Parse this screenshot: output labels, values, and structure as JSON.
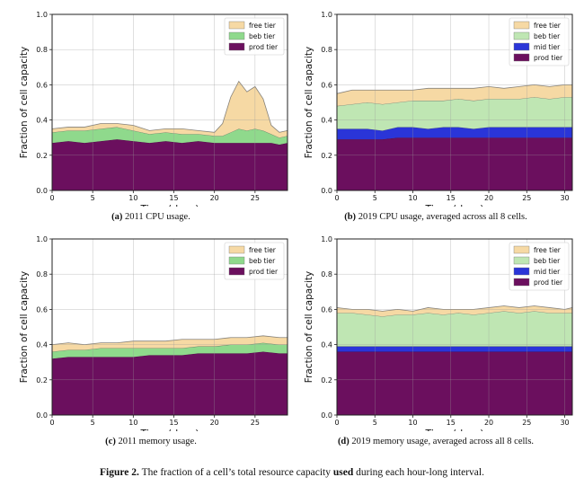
{
  "figure_caption": {
    "label": "Figure 2.",
    "text_before": " The fraction of a cell’s total resource capacity ",
    "bold_word": "used",
    "text_after": " during each hour-long interval."
  },
  "chart_data": [
    {
      "id": "a",
      "type": "area",
      "stacked": true,
      "caption_label": "(a)",
      "caption_text": "2011 CPU usage.",
      "xlabel": "Time (days)",
      "ylabel": "Fraction of cell capacity",
      "xlim": [
        0,
        29
      ],
      "ylim": [
        0,
        1.0
      ],
      "xticks": [
        0,
        5,
        10,
        15,
        20,
        25
      ],
      "yticks": [
        "0.0",
        "0.2",
        "0.4",
        "0.6",
        "0.8",
        "1.0"
      ],
      "grid": true,
      "legend_position": "top-right",
      "x": [
        0,
        2,
        4,
        6,
        8,
        10,
        12,
        14,
        16,
        18,
        20,
        21,
        22,
        23,
        24,
        25,
        26,
        27,
        28,
        29
      ],
      "series": [
        {
          "name": "prod tier",
          "color": "#6b0f5e",
          "values": [
            0.27,
            0.28,
            0.27,
            0.28,
            0.29,
            0.28,
            0.27,
            0.28,
            0.27,
            0.28,
            0.27,
            0.27,
            0.27,
            0.27,
            0.27,
            0.27,
            0.27,
            0.27,
            0.26,
            0.27
          ]
        },
        {
          "name": "beb tier",
          "color": "#8fd98c",
          "values": [
            0.06,
            0.06,
            0.07,
            0.07,
            0.07,
            0.06,
            0.05,
            0.05,
            0.05,
            0.04,
            0.04,
            0.04,
            0.06,
            0.08,
            0.07,
            0.08,
            0.07,
            0.05,
            0.04,
            0.04
          ]
        },
        {
          "name": "free tier",
          "color": "#f6d9a4",
          "values": [
            0.02,
            0.02,
            0.02,
            0.03,
            0.02,
            0.03,
            0.02,
            0.02,
            0.03,
            0.02,
            0.02,
            0.07,
            0.2,
            0.27,
            0.22,
            0.24,
            0.18,
            0.05,
            0.03,
            0.03
          ]
        }
      ]
    },
    {
      "id": "b",
      "type": "area",
      "stacked": true,
      "caption_label": "(b)",
      "caption_text": "2019 CPU usage, averaged across all 8 cells.",
      "xlabel": "Time (days)",
      "ylabel": "Fraction of cell capacity",
      "xlim": [
        0,
        31
      ],
      "ylim": [
        0,
        1.0
      ],
      "xticks": [
        0,
        5,
        10,
        15,
        20,
        25,
        30
      ],
      "yticks": [
        "0.0",
        "0.2",
        "0.4",
        "0.6",
        "0.8",
        "1.0"
      ],
      "grid": true,
      "legend_position": "top-right",
      "x": [
        0,
        2,
        4,
        6,
        8,
        10,
        12,
        14,
        16,
        18,
        20,
        22,
        24,
        26,
        28,
        30,
        31
      ],
      "series": [
        {
          "name": "prod tier",
          "color": "#6b0f5e",
          "values": [
            0.29,
            0.29,
            0.29,
            0.29,
            0.3,
            0.3,
            0.3,
            0.3,
            0.3,
            0.3,
            0.3,
            0.3,
            0.3,
            0.3,
            0.3,
            0.3,
            0.3
          ]
        },
        {
          "name": "mid tier",
          "color": "#2a35d8",
          "values": [
            0.06,
            0.06,
            0.06,
            0.05,
            0.06,
            0.06,
            0.05,
            0.06,
            0.06,
            0.05,
            0.06,
            0.06,
            0.06,
            0.06,
            0.06,
            0.06,
            0.06
          ]
        },
        {
          "name": "beb tier",
          "color": "#bfe6b3",
          "values": [
            0.13,
            0.14,
            0.15,
            0.15,
            0.14,
            0.15,
            0.16,
            0.15,
            0.16,
            0.16,
            0.16,
            0.16,
            0.16,
            0.17,
            0.16,
            0.17,
            0.17
          ]
        },
        {
          "name": "free tier",
          "color": "#f6d9a4",
          "values": [
            0.07,
            0.08,
            0.07,
            0.08,
            0.07,
            0.06,
            0.07,
            0.07,
            0.06,
            0.07,
            0.07,
            0.06,
            0.07,
            0.07,
            0.07,
            0.07,
            0.07
          ]
        }
      ]
    },
    {
      "id": "c",
      "type": "area",
      "stacked": true,
      "caption_label": "(c)",
      "caption_text": "2011 memory usage.",
      "xlabel": "Time (days)",
      "ylabel": "Fraction of cell capacity",
      "xlim": [
        0,
        29
      ],
      "ylim": [
        0,
        1.0
      ],
      "xticks": [
        0,
        5,
        10,
        15,
        20,
        25
      ],
      "yticks": [
        "0.0",
        "0.2",
        "0.4",
        "0.6",
        "0.8",
        "1.0"
      ],
      "grid": true,
      "legend_position": "top-right",
      "x": [
        0,
        2,
        4,
        6,
        8,
        10,
        12,
        14,
        16,
        18,
        20,
        22,
        24,
        26,
        28,
        29
      ],
      "series": [
        {
          "name": "prod tier",
          "color": "#6b0f5e",
          "values": [
            0.32,
            0.33,
            0.33,
            0.33,
            0.33,
            0.33,
            0.34,
            0.34,
            0.34,
            0.35,
            0.35,
            0.35,
            0.35,
            0.36,
            0.35,
            0.35
          ]
        },
        {
          "name": "beb tier",
          "color": "#8fd98c",
          "values": [
            0.04,
            0.04,
            0.04,
            0.05,
            0.05,
            0.05,
            0.04,
            0.04,
            0.04,
            0.04,
            0.04,
            0.05,
            0.05,
            0.05,
            0.05,
            0.05
          ]
        },
        {
          "name": "free tier",
          "color": "#f6d9a4",
          "values": [
            0.04,
            0.04,
            0.03,
            0.03,
            0.03,
            0.04,
            0.04,
            0.04,
            0.05,
            0.04,
            0.04,
            0.04,
            0.04,
            0.04,
            0.04,
            0.04
          ]
        }
      ]
    },
    {
      "id": "d",
      "type": "area",
      "stacked": true,
      "caption_label": "(d)",
      "caption_text": "2019 memory usage, averaged across all 8 cells.",
      "xlabel": "Time (days)",
      "ylabel": "Fraction of cell capacity",
      "xlim": [
        0,
        31
      ],
      "ylim": [
        0,
        1.0
      ],
      "xticks": [
        0,
        5,
        10,
        15,
        20,
        25,
        30
      ],
      "yticks": [
        "0.0",
        "0.2",
        "0.4",
        "0.6",
        "0.8",
        "1.0"
      ],
      "grid": true,
      "legend_position": "top-right",
      "x": [
        0,
        2,
        4,
        6,
        8,
        10,
        12,
        14,
        16,
        18,
        20,
        22,
        24,
        26,
        28,
        30,
        31
      ],
      "series": [
        {
          "name": "prod tier",
          "color": "#6b0f5e",
          "values": [
            0.36,
            0.36,
            0.36,
            0.36,
            0.36,
            0.36,
            0.36,
            0.36,
            0.36,
            0.36,
            0.36,
            0.36,
            0.36,
            0.36,
            0.36,
            0.36,
            0.36
          ]
        },
        {
          "name": "mid tier",
          "color": "#2a35d8",
          "values": [
            0.03,
            0.03,
            0.03,
            0.03,
            0.03,
            0.03,
            0.03,
            0.03,
            0.03,
            0.03,
            0.03,
            0.03,
            0.03,
            0.03,
            0.03,
            0.03,
            0.03
          ]
        },
        {
          "name": "beb tier",
          "color": "#bfe6b3",
          "values": [
            0.19,
            0.19,
            0.18,
            0.17,
            0.18,
            0.18,
            0.19,
            0.18,
            0.19,
            0.18,
            0.19,
            0.2,
            0.19,
            0.2,
            0.19,
            0.19,
            0.19
          ]
        },
        {
          "name": "free tier",
          "color": "#f6d9a4",
          "values": [
            0.03,
            0.02,
            0.03,
            0.03,
            0.03,
            0.02,
            0.03,
            0.03,
            0.02,
            0.03,
            0.03,
            0.03,
            0.03,
            0.03,
            0.03,
            0.02,
            0.03
          ]
        }
      ]
    }
  ]
}
